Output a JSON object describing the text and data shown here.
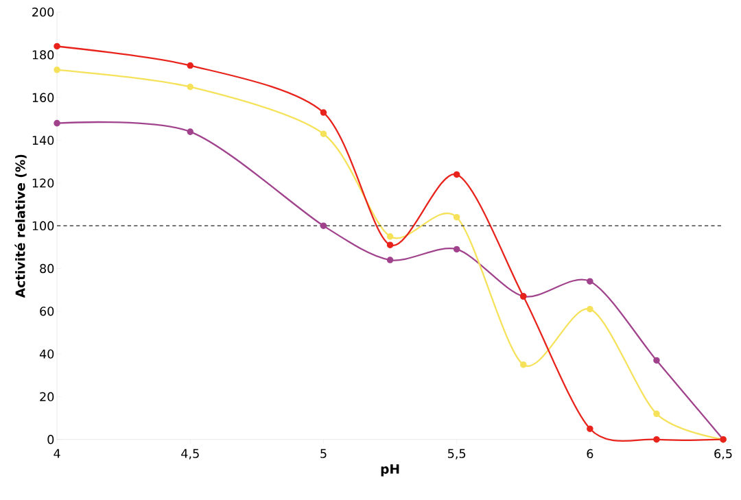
{
  "chart_data": {
    "type": "line",
    "xlabel": "pH",
    "ylabel": "Activité relative (%)",
    "x": [
      4,
      4.5,
      5,
      5.25,
      5.5,
      5.75,
      6,
      6.25,
      6.5
    ],
    "series": [
      {
        "color": "#e8231b",
        "values": [
          184,
          175,
          153,
          91,
          124,
          67,
          5,
          0,
          0
        ]
      },
      {
        "color": "#f5e25a",
        "values": [
          173,
          165,
          143,
          95,
          104,
          35,
          61,
          12,
          0
        ]
      },
      {
        "color": "#a0428c",
        "values": [
          148,
          144,
          100,
          84,
          89,
          67,
          74,
          37,
          0
        ]
      }
    ],
    "xlim": [
      4,
      6.5
    ],
    "xticks": [
      4,
      {
        "value": 4.5,
        "label": "4,5"
      },
      5,
      {
        "value": 5.5,
        "label": "5,5"
      },
      6,
      {
        "value": 6.5,
        "label": "6,5"
      }
    ],
    "ylim": [
      0,
      200
    ],
    "yticks": [
      0,
      20,
      40,
      60,
      80,
      100,
      120,
      140,
      160,
      180,
      200
    ],
    "ref_lines": [
      {
        "axis": "y",
        "value": 100,
        "line_style": "dashed",
        "color": "#222222"
      }
    ],
    "grid": false,
    "marker": "circle",
    "line_style": "solid"
  }
}
